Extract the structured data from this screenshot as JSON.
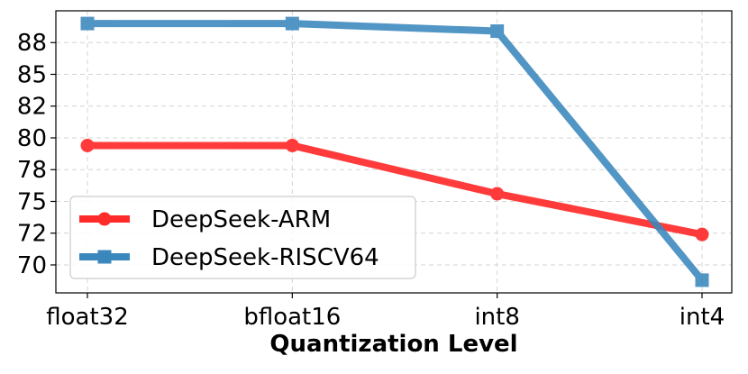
{
  "chart_data": {
    "type": "line",
    "xlabel": "Quantization Level",
    "ylabel": "",
    "categories": [
      "float32",
      "bfloat16",
      "int8",
      "int4"
    ],
    "series": [
      {
        "name": "DeepSeek-ARM",
        "values": [
          79.4,
          79.4,
          75.6,
          72.4
        ],
        "color": "#ff2a2a",
        "marker": "circle"
      },
      {
        "name": "DeepSeek-RISCV64",
        "values": [
          89.0,
          89.0,
          88.4,
          68.8
        ],
        "color": "#3a87bd",
        "marker": "square"
      }
    ],
    "yticks": [
      {
        "value": 70.0,
        "label": "70"
      },
      {
        "value": 72.5,
        "label": "72"
      },
      {
        "value": 75.0,
        "label": "75"
      },
      {
        "value": 77.5,
        "label": "78"
      },
      {
        "value": 80.0,
        "label": "80"
      },
      {
        "value": 82.5,
        "label": "82"
      },
      {
        "value": 85.0,
        "label": "85"
      },
      {
        "value": 87.5,
        "label": "88"
      }
    ],
    "ylim": [
      67.8,
      90.0
    ],
    "grid": true,
    "legend_position": "lower-left"
  }
}
